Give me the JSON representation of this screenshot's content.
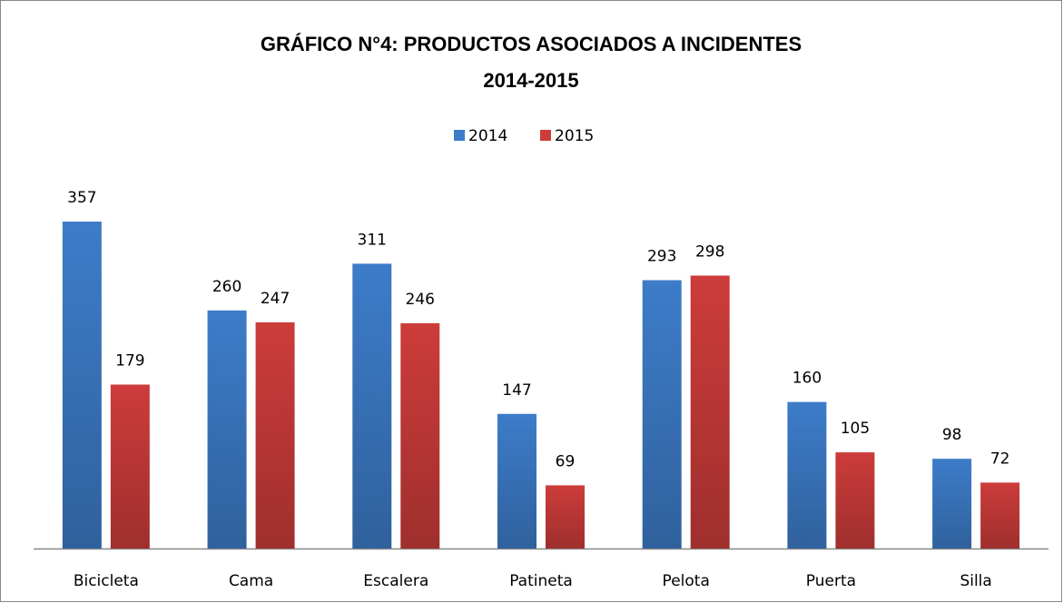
{
  "chart_data": {
    "type": "bar",
    "title": [
      "GRÁFICO N°4: PRODUCTOS ASOCIADOS A INCIDENTES",
      "2014-2015"
    ],
    "categories": [
      "Bicicleta",
      "Cama",
      "Escalera",
      "Patineta",
      "Pelota",
      "Puerta",
      "Silla"
    ],
    "series": [
      {
        "name": "2014",
        "color": "#3d7cc9",
        "values": [
          357,
          260,
          311,
          147,
          293,
          160,
          98
        ]
      },
      {
        "name": "2015",
        "color": "#cc3c3a",
        "values": [
          179,
          247,
          246,
          69,
          298,
          105,
          72
        ]
      }
    ],
    "legend": "top"
  }
}
